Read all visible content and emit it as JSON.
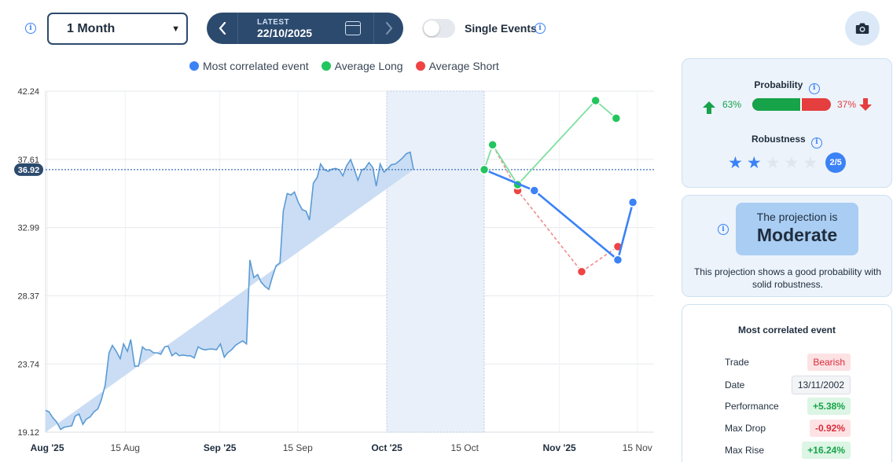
{
  "toolbar": {
    "period": "1 Month",
    "latest_label": "LATEST",
    "date": "22/10/2025",
    "single_events_label": "Single Events",
    "single_events_on": false
  },
  "colors": {
    "most_correlated": "#3b82f6",
    "average_long": "#22c55e",
    "average_short": "#ef4444",
    "area_fill": "#c7dbf3",
    "area_line": "#5b9bd5",
    "navy": "#2c4a6e"
  },
  "legend": [
    {
      "label": "Most correlated event",
      "color": "#3b82f6"
    },
    {
      "label": "Average Long",
      "color": "#22c55e"
    },
    {
      "label": "Average Short",
      "color": "#ef4444"
    }
  ],
  "chart_data": {
    "type": "line",
    "y_ticks": [
      42.24,
      37.61,
      32.99,
      28.37,
      23.74,
      19.12
    ],
    "ylim": [
      19.12,
      42.24
    ],
    "current_price": 36.92,
    "x_ticks": [
      {
        "label": "Aug '25",
        "bold": true,
        "day": 0
      },
      {
        "label": "15 Aug",
        "bold": false,
        "day": 14
      },
      {
        "label": "Sep '25",
        "bold": true,
        "day": 31
      },
      {
        "label": "15 Sep",
        "bold": false,
        "day": 45
      },
      {
        "label": "Oct '25",
        "bold": true,
        "day": 61
      },
      {
        "label": "15 Oct",
        "bold": false,
        "day": 75
      },
      {
        "label": "Nov '25",
        "bold": true,
        "day": 92
      },
      {
        "label": "15 Nov",
        "bold": false,
        "day": 106
      }
    ],
    "history": {
      "day": [
        -0.3,
        0.3,
        1,
        1.7,
        2.4,
        3,
        3.7,
        4.4,
        5,
        5.7,
        6.4,
        7,
        7.7,
        8.4,
        9.1,
        9.7,
        10.4,
        11.1,
        11.7,
        12.4,
        13.1,
        13.7,
        14.4,
        15,
        15.7,
        16.4,
        17.1,
        17.7,
        18.4,
        19.1,
        19.7,
        20.4,
        21.1,
        21.7,
        22.4,
        23.1,
        23.7,
        24.4,
        25.1,
        25.7,
        26.4,
        27.1,
        27.8,
        28.4,
        29.1,
        29.8,
        30.4,
        31.1,
        31.8,
        32.4,
        33.1,
        33.8,
        34.4,
        35.1,
        35.8,
        36.4,
        37.1,
        37.8,
        38.4,
        39.1,
        39.8,
        40.4,
        41.1,
        41.8,
        42.4,
        43.1,
        43.8,
        44.4,
        45.1,
        45.8,
        46.5,
        47.1,
        47.8,
        48.5,
        49.1,
        49.8,
        50.5,
        51.1,
        51.8,
        52.5,
        53.1,
        53.8,
        54.5,
        55.1,
        55.8,
        56.5,
        57.1,
        57.8,
        58.5,
        59.1,
        59.8,
        60.5,
        61.2,
        61.8,
        62.5,
        63.2,
        63.8,
        64.5,
        65.2,
        65.8,
        66.5,
        67.2,
        67.8,
        68.5,
        69.2,
        69.8,
        70.5,
        71.2,
        71.8,
        72.5,
        73.2,
        73.8,
        74.5,
        75.2,
        75.8,
        76.5,
        77.2,
        77.8,
        78.5
      ],
      "value": [
        20.6,
        20.5,
        20.1,
        19.8,
        19.3,
        19.45,
        19.5,
        19.55,
        20.2,
        20.35,
        19.65,
        20.0,
        20.15,
        20.5,
        20.7,
        21.3,
        22.3,
        24.5,
        25.0,
        24.6,
        24.1,
        25.1,
        24.6,
        25.4,
        23.6,
        23.6,
        24.9,
        24.7,
        24.7,
        24.5,
        24.5,
        24.4,
        24.9,
        24.95,
        24.3,
        24.5,
        24.3,
        24.35,
        24.3,
        24.3,
        24.15,
        24.9,
        24.75,
        24.7,
        24.75,
        24.75,
        24.7,
        25.1,
        24.2,
        24.5,
        24.7,
        25.0,
        25.15,
        25.3,
        25.1,
        30.8,
        29.6,
        29.8,
        29.3,
        29.0,
        28.8,
        29.6,
        30.4,
        30.6,
        34.1,
        35.3,
        35.2,
        35.4,
        34.7,
        34.2,
        34.1,
        33.5,
        36.0,
        36.4,
        37.3,
        36.9,
        36.8,
        36.95,
        37.0,
        36.9,
        36.5,
        37.2,
        37.6,
        37.0,
        36.2,
        36.9,
        37.0,
        37.4,
        37.05,
        35.8,
        37.3,
        36.75,
        37.0,
        37.25,
        37.3,
        37.5,
        37.7,
        38.0,
        38.1,
        36.92
      ],
      "highlight_from_day": 61,
      "highlight_to_day": 78.5
    },
    "series": [
      {
        "name": "Most correlated event",
        "x": [
          78.5,
          87.5,
          102.5,
          105.2
        ],
        "y": [
          36.92,
          35.5,
          30.8,
          34.7
        ],
        "style": "solid"
      },
      {
        "name": "Average Long",
        "x": [
          78.5,
          80.0,
          84.5,
          98.5,
          102.2
        ],
        "y": [
          36.92,
          38.6,
          35.9,
          41.6,
          40.4
        ],
        "style": "solid-light"
      },
      {
        "name": "Average Short",
        "x": [
          78.5,
          80.0,
          84.5,
          96.0,
          102.5
        ],
        "y": [
          36.92,
          38.6,
          35.5,
          30.0,
          31.7
        ],
        "style": "dashed"
      }
    ]
  },
  "probability": {
    "title": "Probability",
    "up_pct": "63%",
    "down_pct": "37%",
    "up_value": 0.63
  },
  "robustness": {
    "title": "Robustness",
    "rating": 2,
    "max": 5,
    "label": "2/5"
  },
  "projection": {
    "line1": "The projection is",
    "line2": "Moderate",
    "description": "This projection shows a good probability with solid robustness."
  },
  "most_correlated_event": {
    "title": "Most correlated event",
    "rows": [
      {
        "label": "Trade",
        "value": "Bearish",
        "style": "red"
      },
      {
        "label": "Date",
        "value": "13/11/2002",
        "style": "gray"
      },
      {
        "label": "Performance",
        "value": "+5.38%",
        "style": "green"
      },
      {
        "label": "Max Drop",
        "value": "-0.92%",
        "style": "redb"
      },
      {
        "label": "Max Rise",
        "value": "+16.24%",
        "style": "green"
      }
    ]
  }
}
